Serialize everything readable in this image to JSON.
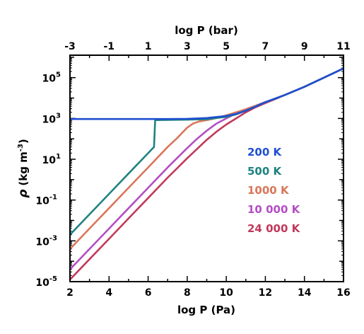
{
  "chart_data": {
    "type": "line",
    "xlabel": "log P (Pa)",
    "x2label": "log P (bar)",
    "ylabel_symbol": "ρ",
    "ylabel_units": "(kg m",
    "ylabel_units_exp": "-3",
    "ylabel_units_close": ")",
    "xlim": [
      2,
      16
    ],
    "ylim_log10": [
      -5,
      6.1
    ],
    "x_ticks": [
      "2",
      "4",
      "6",
      "8",
      "10",
      "12",
      "14",
      "16"
    ],
    "x2_ticks": [
      "-3",
      "-1",
      "1",
      "3",
      "5",
      "7",
      "9",
      "11"
    ],
    "y_ticks": [
      {
        "base": "10",
        "exp": "5",
        "value": 5
      },
      {
        "base": "10",
        "exp": "3",
        "value": 3
      },
      {
        "base": "10",
        "exp": "1",
        "value": 1
      },
      {
        "base": "10",
        "exp": "-1",
        "value": -1
      },
      {
        "base": "10",
        "exp": "-3",
        "value": -3
      },
      {
        "base": "10",
        "exp": "-5",
        "value": -5
      }
    ],
    "legend_position": "right-center",
    "series": [
      {
        "name": "24 000 K",
        "color": "#c1395a",
        "x": [
          2.0,
          3.0,
          4.0,
          5.0,
          6.0,
          7.0,
          8.0,
          8.5,
          9.0,
          9.5,
          10.0,
          10.5,
          11.0,
          11.5,
          12.0,
          12.5,
          13.0,
          14.0,
          15.0,
          16.0
        ],
        "log_rho": [
          -4.9,
          -3.9,
          -2.9,
          -1.9,
          -0.9,
          0.1,
          1.05,
          1.5,
          1.95,
          2.35,
          2.7,
          3.0,
          3.3,
          3.55,
          3.75,
          3.95,
          4.15,
          4.55,
          5.0,
          5.45
        ]
      },
      {
        "name": "10 000 K",
        "color": "#b44ec4",
        "x": [
          2.0,
          3.0,
          4.0,
          5.0,
          6.0,
          7.0,
          8.0,
          8.5,
          9.0,
          9.5,
          10.0,
          10.5,
          11.0,
          11.5,
          12.0,
          12.5,
          13.0,
          14.0,
          15.0,
          16.0
        ],
        "log_rho": [
          -4.4,
          -3.4,
          -2.4,
          -1.4,
          -0.4,
          0.6,
          1.55,
          2.0,
          2.4,
          2.75,
          3.0,
          3.25,
          3.45,
          3.62,
          3.8,
          3.97,
          4.15,
          4.55,
          5.0,
          5.45
        ]
      },
      {
        "name": "1000 K",
        "color": "#d9765a",
        "x": [
          2.0,
          3.0,
          4.0,
          5.0,
          6.0,
          7.0,
          7.5,
          7.8,
          8.0,
          8.3,
          8.6,
          9.0,
          9.5,
          10.0,
          10.5,
          11.0,
          11.5,
          12.0,
          12.5,
          13.0,
          14.0,
          15.0,
          16.0
        ],
        "log_rho": [
          -3.4,
          -2.4,
          -1.4,
          -0.4,
          0.6,
          1.6,
          2.05,
          2.35,
          2.55,
          2.75,
          2.85,
          2.92,
          3.02,
          3.15,
          3.3,
          3.45,
          3.62,
          3.8,
          3.97,
          4.15,
          4.55,
          5.0,
          5.45
        ]
      },
      {
        "name": "500 K",
        "color": "#1e8380",
        "x": [
          2.0,
          3.0,
          4.0,
          5.0,
          6.0,
          6.3,
          6.34,
          6.36,
          6.4,
          7.0,
          8.0,
          9.0,
          10.0,
          10.5,
          11.0,
          11.5,
          12.0,
          12.5,
          13.0,
          14.0,
          15.0,
          16.0
        ],
        "log_rho": [
          -2.7,
          -1.7,
          -0.7,
          0.3,
          1.3,
          1.6,
          2.5,
          2.9,
          2.92,
          2.93,
          2.94,
          2.96,
          3.08,
          3.2,
          3.38,
          3.58,
          3.8,
          3.97,
          4.15,
          4.55,
          5.0,
          5.45
        ]
      },
      {
        "name": "200 K",
        "color": "#1f4fd1",
        "x": [
          2.0,
          3.0,
          4.0,
          5.0,
          6.0,
          7.0,
          8.0,
          9.0,
          10.0,
          10.5,
          11.0,
          11.5,
          12.0,
          12.5,
          13.0,
          14.0,
          15.0,
          16.0
        ],
        "log_rho": [
          2.97,
          2.97,
          2.97,
          2.97,
          2.97,
          2.97,
          2.98,
          3.02,
          3.12,
          3.22,
          3.38,
          3.58,
          3.8,
          3.97,
          4.15,
          4.55,
          5.0,
          5.45
        ]
      }
    ],
    "legend": [
      {
        "name": "200 K",
        "color": "#1f4fd1"
      },
      {
        "name": "500 K",
        "color": "#1e8380"
      },
      {
        "name": "1000 K",
        "color": "#d9765a"
      },
      {
        "name": "10 000 K",
        "color": "#b44ec4"
      },
      {
        "name": "24 000 K",
        "color": "#c1395a"
      }
    ]
  }
}
